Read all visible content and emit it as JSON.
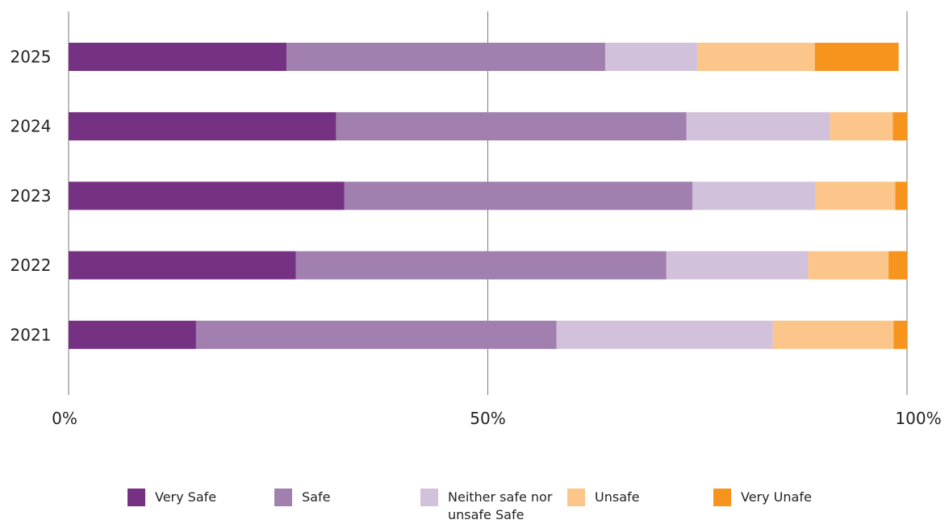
{
  "chart_data": {
    "type": "bar",
    "orientation": "horizontal",
    "stacked": true,
    "categories": [
      "2025",
      "2024",
      "2023",
      "2022",
      "2021"
    ],
    "series": [
      {
        "name": "Very Safe",
        "color": "#763282",
        "values": [
          26,
          31.9,
          32.9,
          27.1,
          15.2
        ]
      },
      {
        "name": "Safe",
        "color": "#a17fae",
        "values": [
          38,
          41.8,
          41.5,
          44.2,
          43
        ]
      },
      {
        "name": "Neither safe nor\nunsafe Safe",
        "color": "#d2c1da",
        "values": [
          11,
          17.1,
          14.7,
          16.9,
          25.8
        ]
      },
      {
        "name": "Unsafe",
        "color": "#fcc589",
        "values": [
          14,
          7.5,
          9.5,
          9.6,
          14.4
        ]
      },
      {
        "name": "Very Unafe",
        "color": "#f7941d",
        "values": [
          10,
          1.7,
          1.4,
          2.2,
          1.6
        ]
      }
    ],
    "x_ticks": [
      "0%",
      "50%",
      "100%"
    ],
    "xlim": [
      0,
      100
    ],
    "grid": true,
    "legend_position": "bottom",
    "title": "",
    "xlabel": "",
    "ylabel": ""
  }
}
